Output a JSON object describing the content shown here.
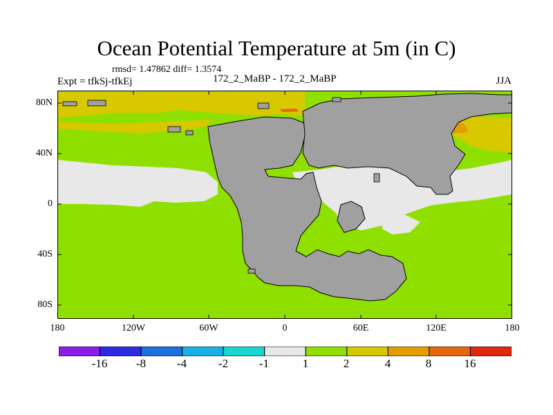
{
  "title": "Ocean Potential Temperature at 5m (in C)",
  "stats_text": "rmsd= 1.47862  diff= 1.3574",
  "expt_label": "Expt = tfkSj-tfkEj",
  "runs_label": "172_2_MaBP - 172_2_MaBP",
  "season": "JJA",
  "lat_labels": [
    "80N",
    "40N",
    "0",
    "40S",
    "80S"
  ],
  "lon_labels": [
    "180",
    "120W",
    "60W",
    "0",
    "60E",
    "120E",
    "180"
  ],
  "colorbar": {
    "labels": [
      "-16",
      "-8",
      "-4",
      "-2",
      "-1",
      "1",
      "2",
      "4",
      "8",
      "16"
    ],
    "colors": [
      "#8c1de8",
      "#2d2ce0",
      "#1a70dc",
      "#19b0e6",
      "#17d6cf",
      "#e8e8e8",
      "#8fe000",
      "#d7c800",
      "#e39d00",
      "#e5670a",
      "#e0280e"
    ]
  },
  "map_colors": {
    "ocean_1_2": "#8fe000",
    "ocean_-1_1": "#e8e8e8",
    "ocean_2_4": "#d7c800",
    "ocean_4_8": "#e39d00",
    "ocean_8_16": "#e5670a",
    "land": "#a0a0a0"
  }
}
